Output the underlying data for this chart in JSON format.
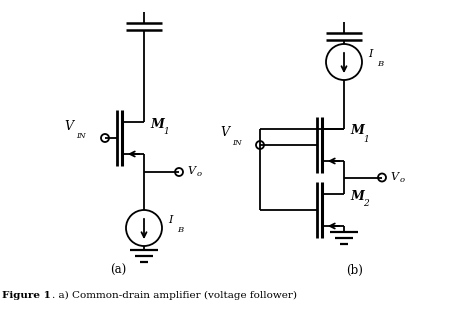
{
  "bg_color": "#ffffff",
  "line_color": "#000000",
  "fig_width": 4.74,
  "fig_height": 3.11,
  "dpi": 100,
  "label_a": "(a)",
  "label_b": "(b)",
  "caption_bold": "Figure 1",
  "caption_normal": ". a) Common-drain amplifier (voltage follower)"
}
